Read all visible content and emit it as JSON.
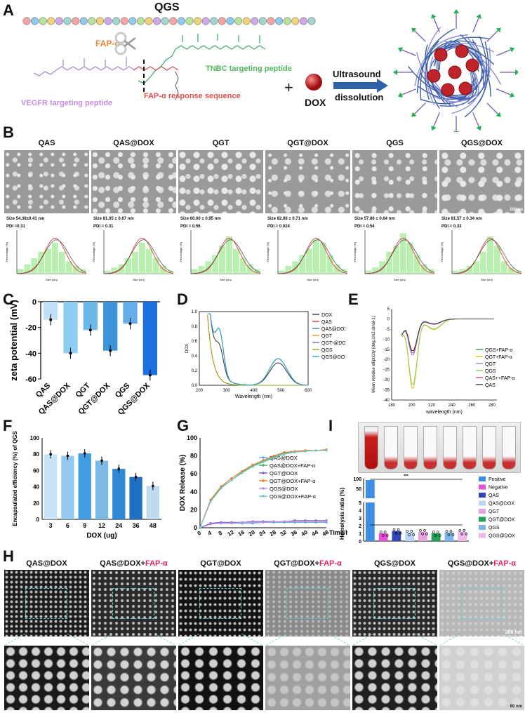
{
  "panelA": {
    "label": "A",
    "qgs_title": "QGS",
    "fap_label": "FAP-α",
    "tnbc_label": "TNBC targeting peptide",
    "fap_response_label": "FAP-α response sequence",
    "vegfr_label": "VEGFR targeting peptide",
    "plus": "+",
    "dox_label": "DOX",
    "arrow_top": "Ultrasound",
    "arrow_bottom": "dissolution"
  },
  "panelB": {
    "label": "B",
    "scale_bar": "100nm",
    "samples": [
      {
        "name": "QAS",
        "size": "Size 54.38±0.41 nm",
        "pdi": "PDI =0.31"
      },
      {
        "name": "QAS@DOX",
        "size": "Size 81.05 ± 0.67 nm",
        "pdi": "PDI = 0.31"
      },
      {
        "name": "QGT",
        "size": "Size 60.00 ± 0.95 nm",
        "pdi": "PDI = 0.56"
      },
      {
        "name": "QGT@DOX",
        "size": "Size 82.08 ± 0.71 nm",
        "pdi": "PDI = 0.024"
      },
      {
        "name": "QGS",
        "size": "Size 57.86 ± 0.64 nm",
        "pdi": "PDI = 0.54"
      },
      {
        "name": "QGS@DOX",
        "size": "Size 81.57 ± 0.34 nm",
        "pdi": "PDI = 0.33"
      }
    ],
    "hist_xlabel": "Size (nm)",
    "hist_ylabel": "Percentage (%)"
  },
  "panelC_label": "C",
  "panelD_label": "D",
  "panelE_label": "E",
  "panelF_label": "F",
  "panelG_label": "G",
  "panelH_label": "H",
  "panelI_label": "I",
  "chart_data": [
    {
      "id": "C",
      "type": "bar",
      "ylabel": "zeta potential (mV)",
      "categories": [
        "QAS",
        "QAS@DOX",
        "QGT",
        "QGT@DOX",
        "QGS",
        "QGS@DOX"
      ],
      "values": [
        -14,
        -40,
        -22,
        -38,
        -17,
        -57
      ],
      "yticks": [
        "0",
        "-20",
        "-40",
        "-60"
      ],
      "ylim": [
        -60,
        0
      ],
      "colors": [
        "#bfe0f7",
        "#8ecdf2",
        "#6cb8ea",
        "#3c95d8",
        "#63aee8",
        "#1b6fe0"
      ]
    },
    {
      "id": "D",
      "type": "line",
      "xlabel": "Wavelength (nm)",
      "ylabel": "DOX",
      "xticks": [
        "200",
        "300",
        "400",
        "500",
        "600"
      ],
      "yticks": [
        "0.0",
        "0.2",
        "0.4",
        "0.6",
        "0.8",
        "1.0"
      ],
      "xlim": [
        200,
        600
      ],
      "ylim": [
        0,
        1.05
      ],
      "series": [
        {
          "name": "DOX",
          "color": "#333333"
        },
        {
          "name": "QAS",
          "color": "#d73b3b"
        },
        {
          "name": "QAS@DOX",
          "color": "#3a7fc9"
        },
        {
          "name": "QGT",
          "color": "#e89628"
        },
        {
          "name": "QGT-@DOX",
          "color": "#8e5db8"
        },
        {
          "name": "QGS",
          "color": "#9aa826"
        },
        {
          "name": "QGS@DOX",
          "color": "#25a9c9"
        }
      ]
    },
    {
      "id": "E",
      "type": "line",
      "xlabel": "wavelength (nm)",
      "ylabel": "Mean residue ellipticity (deg.cm2.dmol-1)",
      "xticks": [
        "180",
        "200",
        "220",
        "240",
        "260",
        "280"
      ],
      "yticks": [
        "5",
        "0",
        "-5",
        "-10",
        "-15",
        "-20",
        "-25",
        "-30",
        "-35",
        "-40"
      ],
      "xlim": [
        180,
        285
      ],
      "ylim": [
        -40,
        5
      ],
      "series": [
        {
          "name": "QGS+FAP-α",
          "color": "#2aa05a"
        },
        {
          "name": "QGT+FAP-α",
          "color": "#d8c21e"
        },
        {
          "name": "QGT",
          "color": "#9f7fd6"
        },
        {
          "name": "QGS",
          "color": "#8fcf5a"
        },
        {
          "name": "QAS++FAP-α",
          "color": "#d44b8a"
        },
        {
          "name": "QAS",
          "color": "#3a3a3a"
        }
      ]
    },
    {
      "id": "F",
      "type": "bar",
      "xlabel": "DOX (ug)",
      "ylabel": "Encapsulated efficiency (%) of QGS",
      "categories": [
        "3",
        "6",
        "9",
        "12",
        "24",
        "36",
        "48"
      ],
      "values": [
        80,
        78,
        81,
        72,
        62,
        52,
        41
      ],
      "yticks": [
        "0",
        "20",
        "40",
        "60",
        "80",
        "100"
      ],
      "ylim": [
        0,
        100
      ],
      "colors": [
        "#c7e3f7",
        "#94c9ef",
        "#3f9de0",
        "#7cb9e3",
        "#2f88d4",
        "#1f6fc5",
        "#bcd9f0"
      ]
    },
    {
      "id": "G",
      "type": "line",
      "xlabel": "Time/h",
      "ylabel": "DOX Release (%)",
      "xticks": [
        "0",
        "4",
        "8",
        "12",
        "16",
        "20",
        "24",
        "28",
        "32",
        "36",
        "40",
        "44",
        "48"
      ],
      "yticks": [
        "0",
        "20",
        "40",
        "60",
        "80",
        "100"
      ],
      "xlim": [
        0,
        48
      ],
      "ylim": [
        0,
        100
      ],
      "x": [
        0,
        4,
        8,
        12,
        16,
        20,
        24,
        28,
        32,
        36,
        40,
        44,
        48
      ],
      "series": [
        {
          "name": "QAS@DOX",
          "color": "#5aa5e6",
          "values": [
            0,
            4,
            5,
            5,
            5,
            5,
            6,
            6,
            6,
            6,
            6,
            6,
            6
          ]
        },
        {
          "name": "QAS@DOX+FAP-α",
          "color": "#4ab05a",
          "values": [
            0,
            30,
            45,
            53,
            62,
            69,
            74,
            79,
            83,
            85,
            86,
            86,
            87
          ]
        },
        {
          "name": "QGT@DOX",
          "color": "#8a55c9",
          "values": [
            0,
            5,
            6,
            6,
            6,
            7,
            7,
            7,
            7,
            8,
            8,
            8,
            8
          ]
        },
        {
          "name": "QGT@DOX+FAP-α",
          "color": "#ee7a2e",
          "values": [
            0,
            31,
            46,
            55,
            63,
            70,
            75,
            80,
            84,
            85,
            86,
            86,
            87
          ]
        },
        {
          "name": "QGS@DOX",
          "color": "#b48fe0",
          "values": [
            0,
            4,
            5,
            5,
            6,
            6,
            6,
            7,
            7,
            7,
            7,
            7,
            7
          ]
        },
        {
          "name": "QGS@DOX+FAP-α",
          "color": "#6ec3cf",
          "values": [
            0,
            29,
            44,
            53,
            61,
            68,
            73,
            78,
            82,
            84,
            85,
            86,
            86
          ]
        }
      ]
    },
    {
      "id": "I",
      "type": "bar",
      "ylabel": "Hemolysis ratio (%)",
      "categories": [
        "Positive",
        "Negative",
        "QAS",
        "QAS@DOX",
        "QGT",
        "QGT@DOX",
        "QGS",
        "QGS@DOX"
      ],
      "values": [
        100,
        1,
        1.3,
        1.1,
        1.2,
        1.0,
        1.1,
        1.2
      ],
      "yticks": [
        "0",
        "1",
        "2",
        "3",
        "4",
        "5",
        "50",
        "100"
      ],
      "annotation": "**",
      "colors": [
        "#3f8ee6",
        "#e74fd5",
        "#3246b8",
        "#b9d5f5",
        "#e7a3e0",
        "#22a05a",
        "#7eb4ea",
        "#f3b8e9"
      ]
    }
  ],
  "panelH": {
    "titles": [
      {
        "main": "QAS@DOX",
        "extra": ""
      },
      {
        "main": "QAS@DOX+",
        "extra": "FAP-α"
      },
      {
        "main": "QGT@DOX",
        "extra": ""
      },
      {
        "main": "QGT@DOX+",
        "extra": "FAP-α"
      },
      {
        "main": "QGS@DOX",
        "extra": ""
      },
      {
        "main": "QGS@DOX+",
        "extra": "FAP-α"
      }
    ],
    "scale_top": "200 nm",
    "scale_bottom": "60 nm"
  }
}
